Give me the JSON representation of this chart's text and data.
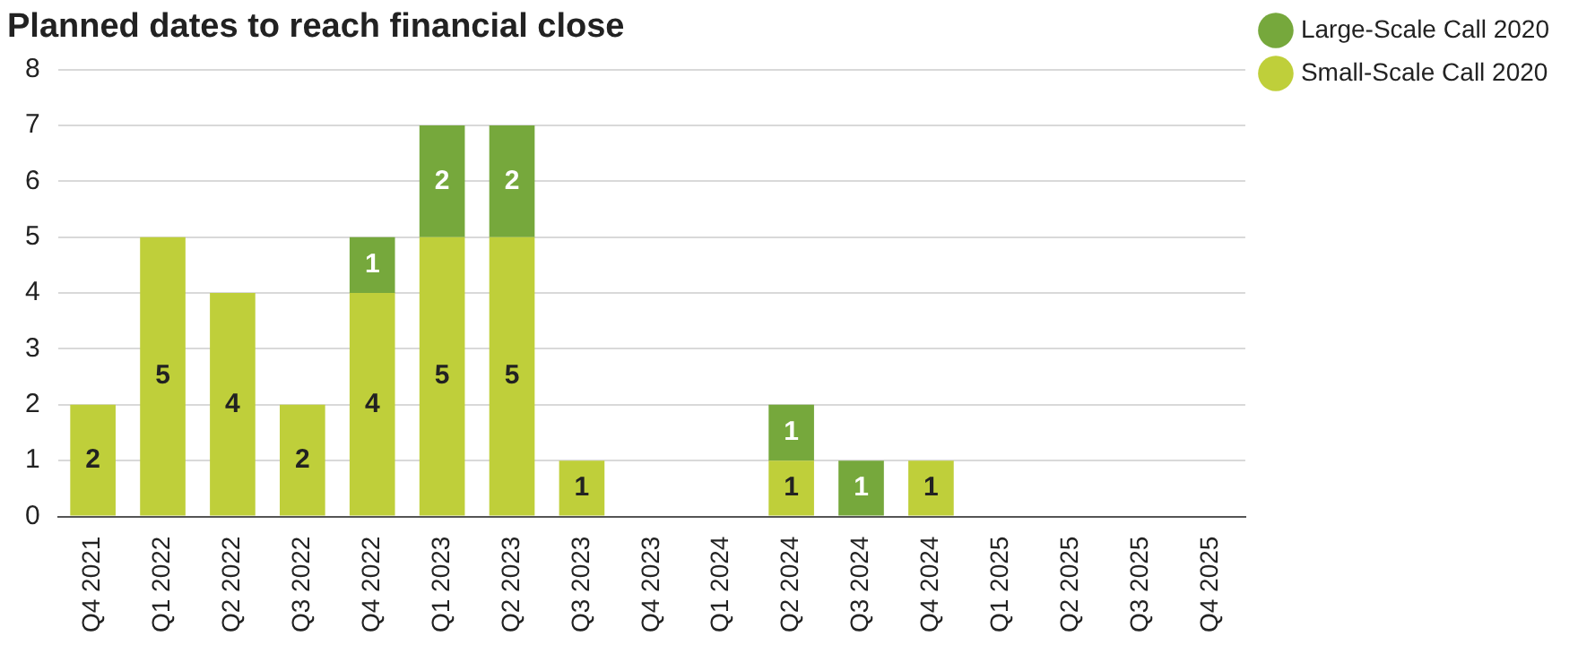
{
  "chart_data": {
    "type": "bar",
    "title": "Planned dates to reach financial close",
    "stacked": true,
    "categories": [
      "Q4 2021",
      "Q1 2022",
      "Q2 2022",
      "Q3 2022",
      "Q4 2022",
      "Q1 2023",
      "Q2 2023",
      "Q3 2023",
      "Q4 2023",
      "Q1 2024",
      "Q2 2024",
      "Q3 2024",
      "Q4 2024",
      "Q1 2025",
      "Q2 2025",
      "Q3 2025",
      "Q4 2025"
    ],
    "series": [
      {
        "name": "Small-Scale Call 2020",
        "color": "#bfcf3a",
        "values": [
          2,
          5,
          4,
          2,
          4,
          5,
          5,
          1,
          0,
          0,
          1,
          0,
          1,
          0,
          0,
          0,
          0
        ],
        "value_labels": [
          "2",
          "5",
          "4",
          "2",
          "4",
          "5",
          "5",
          "1",
          null,
          null,
          "1",
          null,
          "1",
          null,
          null,
          null,
          null
        ]
      },
      {
        "name": "Large-Scale Call 2020",
        "color": "#76a83c",
        "values": [
          0,
          0,
          0,
          0,
          1,
          2,
          2,
          0,
          0,
          0,
          1,
          1,
          0,
          0,
          0,
          0,
          0
        ],
        "value_labels": [
          null,
          null,
          null,
          null,
          "1",
          "2",
          "2",
          null,
          null,
          null,
          "1",
          "1",
          null,
          null,
          null,
          null,
          null
        ]
      }
    ],
    "ylim": [
      0,
      8
    ],
    "yticks": [
      0,
      1,
      2,
      3,
      4,
      5,
      6,
      7,
      8
    ],
    "grid": "y",
    "legend": "right"
  }
}
